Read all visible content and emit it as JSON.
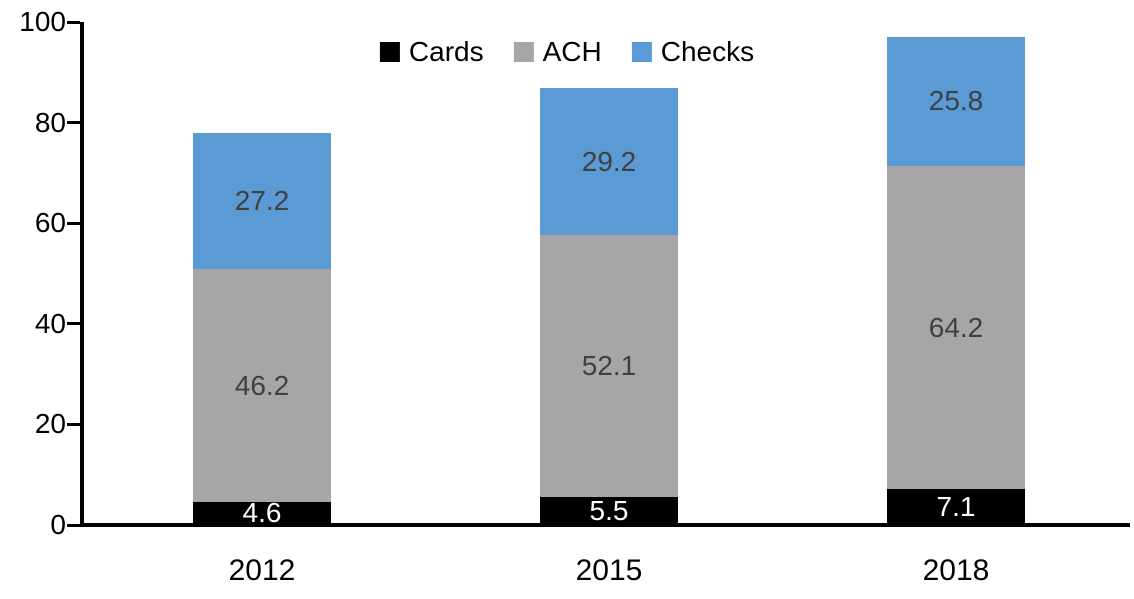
{
  "chart_data": {
    "type": "bar",
    "stacked": true,
    "title": "",
    "xlabel": "",
    "ylabel": "",
    "categories": [
      "2012",
      "2015",
      "2018"
    ],
    "series": [
      {
        "name": "Cards",
        "color": "#000000",
        "label_color": "#ffffff",
        "values": [
          4.6,
          5.5,
          7.1
        ]
      },
      {
        "name": "ACH",
        "color": "#a6a6a6",
        "label_color": "#404040",
        "values": [
          46.2,
          52.1,
          64.2
        ]
      },
      {
        "name": "Checks",
        "color": "#5b9bd5",
        "label_color": "#404040",
        "values": [
          27.2,
          29.2,
          25.8
        ]
      }
    ],
    "ylim": [
      0,
      100
    ],
    "yticks": [
      0,
      20,
      40,
      60,
      80,
      100
    ],
    "grid": false,
    "legend_position": "top-center",
    "axis_color": "#000000"
  }
}
